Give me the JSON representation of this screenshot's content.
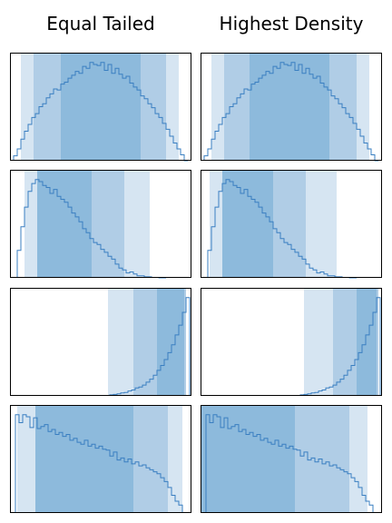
{
  "column_titles": [
    "Equal Tailed",
    "Highest Density"
  ],
  "colors": {
    "band_light": "#d6e5f2",
    "band_mid": "#b0cde6",
    "band_dark": "#8dbadc",
    "line": "#3a7fc1",
    "frame": "#000000"
  },
  "chart_data": [
    {
      "type": "histogram-step",
      "row": 0,
      "column": "Equal Tailed",
      "xlim": [
        0,
        1
      ],
      "ylim": [
        0,
        1.1
      ],
      "bands": [
        [
          0.06,
          0.93
        ],
        [
          0.13,
          0.86
        ],
        [
          0.28,
          0.72
        ]
      ],
      "x": [
        0.03,
        0.05,
        0.07,
        0.09,
        0.11,
        0.13,
        0.15,
        0.17,
        0.19,
        0.21,
        0.23,
        0.25,
        0.27,
        0.29,
        0.31,
        0.33,
        0.35,
        0.37,
        0.39,
        0.41,
        0.43,
        0.45,
        0.47,
        0.49,
        0.51,
        0.53,
        0.55,
        0.57,
        0.59,
        0.61,
        0.63,
        0.65,
        0.67,
        0.69,
        0.71,
        0.73,
        0.75,
        0.77,
        0.79,
        0.81,
        0.83,
        0.85,
        0.87,
        0.89,
        0.91,
        0.93,
        0.95,
        0.97
      ],
      "y": [
        0.05,
        0.12,
        0.22,
        0.3,
        0.37,
        0.44,
        0.48,
        0.55,
        0.58,
        0.64,
        0.68,
        0.73,
        0.72,
        0.78,
        0.8,
        0.84,
        0.87,
        0.91,
        0.89,
        0.96,
        0.94,
        1.0,
        0.98,
        0.97,
        1.0,
        0.92,
        0.98,
        0.89,
        0.94,
        0.88,
        0.84,
        0.86,
        0.79,
        0.75,
        0.72,
        0.66,
        0.63,
        0.58,
        0.54,
        0.48,
        0.44,
        0.38,
        0.32,
        0.25,
        0.18,
        0.12,
        0.06,
        0.0
      ]
    },
    {
      "type": "histogram-step",
      "row": 0,
      "column": "Highest Density",
      "xlim": [
        0,
        1
      ],
      "ylim": [
        0,
        1.1
      ],
      "bands": [
        [
          0.06,
          0.93
        ],
        [
          0.13,
          0.86
        ],
        [
          0.27,
          0.71
        ]
      ],
      "x": [
        0.03,
        0.05,
        0.07,
        0.09,
        0.11,
        0.13,
        0.15,
        0.17,
        0.19,
        0.21,
        0.23,
        0.25,
        0.27,
        0.29,
        0.31,
        0.33,
        0.35,
        0.37,
        0.39,
        0.41,
        0.43,
        0.45,
        0.47,
        0.49,
        0.51,
        0.53,
        0.55,
        0.57,
        0.59,
        0.61,
        0.63,
        0.65,
        0.67,
        0.69,
        0.71,
        0.73,
        0.75,
        0.77,
        0.79,
        0.81,
        0.83,
        0.85,
        0.87,
        0.89,
        0.91,
        0.93,
        0.95,
        0.97
      ],
      "y": [
        0.05,
        0.12,
        0.22,
        0.3,
        0.37,
        0.44,
        0.48,
        0.55,
        0.58,
        0.64,
        0.68,
        0.73,
        0.72,
        0.78,
        0.8,
        0.84,
        0.87,
        0.91,
        0.89,
        0.96,
        0.94,
        1.0,
        0.98,
        0.97,
        1.0,
        0.92,
        0.98,
        0.89,
        0.94,
        0.88,
        0.84,
        0.86,
        0.79,
        0.75,
        0.72,
        0.66,
        0.63,
        0.58,
        0.54,
        0.48,
        0.44,
        0.38,
        0.32,
        0.25,
        0.18,
        0.12,
        0.06,
        0.0
      ]
    },
    {
      "type": "histogram-step",
      "row": 1,
      "column": "Equal Tailed",
      "xlim": [
        0,
        1
      ],
      "ylim": [
        0,
        1.1
      ],
      "bands": [
        [
          0.08,
          0.77
        ],
        [
          0.15,
          0.63
        ],
        [
          0.15,
          0.45
        ]
      ],
      "x": [
        0.05,
        0.07,
        0.09,
        0.11,
        0.13,
        0.15,
        0.17,
        0.19,
        0.21,
        0.23,
        0.25,
        0.27,
        0.29,
        0.31,
        0.33,
        0.35,
        0.37,
        0.39,
        0.41,
        0.43,
        0.45,
        0.47,
        0.49,
        0.51,
        0.53,
        0.55,
        0.57,
        0.59,
        0.61,
        0.63,
        0.65,
        0.67,
        0.69,
        0.71,
        0.73,
        0.75,
        0.77,
        0.79,
        0.81,
        0.83,
        0.85
      ],
      "y": [
        0.28,
        0.52,
        0.72,
        0.88,
        0.96,
        1.0,
        0.98,
        0.94,
        0.92,
        0.86,
        0.9,
        0.83,
        0.8,
        0.77,
        0.72,
        0.66,
        0.62,
        0.57,
        0.5,
        0.46,
        0.4,
        0.36,
        0.34,
        0.29,
        0.26,
        0.22,
        0.19,
        0.14,
        0.1,
        0.08,
        0.05,
        0.06,
        0.04,
        0.02,
        0.02,
        0.01,
        0.01,
        0.005,
        0.005,
        0.0,
        0.0
      ]
    },
    {
      "type": "histogram-step",
      "row": 1,
      "column": "Highest Density",
      "xlim": [
        0,
        1
      ],
      "ylim": [
        0,
        1.1
      ],
      "bands": [
        [
          0.05,
          0.75
        ],
        [
          0.12,
          0.58
        ],
        [
          0.12,
          0.4
        ]
      ],
      "x": [
        0.05,
        0.07,
        0.09,
        0.11,
        0.13,
        0.15,
        0.17,
        0.19,
        0.21,
        0.23,
        0.25,
        0.27,
        0.29,
        0.31,
        0.33,
        0.35,
        0.37,
        0.39,
        0.41,
        0.43,
        0.45,
        0.47,
        0.49,
        0.51,
        0.53,
        0.55,
        0.57,
        0.59,
        0.61,
        0.63,
        0.65,
        0.67,
        0.69,
        0.71,
        0.73,
        0.75,
        0.77,
        0.79,
        0.81,
        0.83,
        0.85
      ],
      "y": [
        0.28,
        0.52,
        0.72,
        0.88,
        0.96,
        1.0,
        0.98,
        0.94,
        0.92,
        0.86,
        0.9,
        0.83,
        0.8,
        0.77,
        0.72,
        0.66,
        0.62,
        0.57,
        0.5,
        0.46,
        0.4,
        0.36,
        0.34,
        0.29,
        0.26,
        0.22,
        0.19,
        0.14,
        0.1,
        0.08,
        0.05,
        0.06,
        0.04,
        0.02,
        0.02,
        0.01,
        0.01,
        0.005,
        0.005,
        0.0,
        0.0
      ]
    },
    {
      "type": "histogram-step",
      "row": 2,
      "column": "Equal Tailed",
      "xlim": [
        0,
        1
      ],
      "ylim": [
        0,
        1.1
      ],
      "bands": [
        [
          0.54,
          0.97
        ],
        [
          0.68,
          0.97
        ],
        [
          0.81,
          0.96
        ]
      ],
      "x": [
        0.52,
        0.54,
        0.56,
        0.58,
        0.6,
        0.62,
        0.64,
        0.66,
        0.68,
        0.7,
        0.72,
        0.74,
        0.76,
        0.78,
        0.8,
        0.82,
        0.84,
        0.86,
        0.88,
        0.9,
        0.92,
        0.94,
        0.96,
        0.98
      ],
      "y": [
        0.005,
        0.005,
        0.01,
        0.015,
        0.02,
        0.03,
        0.035,
        0.05,
        0.06,
        0.08,
        0.09,
        0.11,
        0.14,
        0.17,
        0.21,
        0.26,
        0.31,
        0.37,
        0.44,
        0.52,
        0.62,
        0.72,
        0.85,
        1.0
      ]
    },
    {
      "type": "histogram-step",
      "row": 2,
      "column": "Highest Density",
      "xlim": [
        0,
        1
      ],
      "ylim": [
        0,
        1.1
      ],
      "bands": [
        [
          0.57,
          0.98
        ],
        [
          0.73,
          0.98
        ],
        [
          0.86,
          0.97
        ]
      ],
      "x": [
        0.52,
        0.54,
        0.56,
        0.58,
        0.6,
        0.62,
        0.64,
        0.66,
        0.68,
        0.7,
        0.72,
        0.74,
        0.76,
        0.78,
        0.8,
        0.82,
        0.84,
        0.86,
        0.88,
        0.9,
        0.92,
        0.94,
        0.96,
        0.98
      ],
      "y": [
        0.005,
        0.005,
        0.01,
        0.015,
        0.02,
        0.03,
        0.035,
        0.05,
        0.06,
        0.08,
        0.09,
        0.11,
        0.14,
        0.17,
        0.21,
        0.26,
        0.31,
        0.37,
        0.44,
        0.52,
        0.62,
        0.72,
        0.85,
        1.0
      ]
    },
    {
      "type": "histogram-step",
      "row": 3,
      "column": "Equal Tailed",
      "xlim": [
        0,
        1
      ],
      "ylim": [
        0,
        1.1
      ],
      "bands": [
        [
          0.04,
          0.95
        ],
        [
          0.14,
          0.87
        ],
        [
          0.14,
          0.68
        ]
      ],
      "x": [
        0.04,
        0.06,
        0.08,
        0.1,
        0.12,
        0.14,
        0.16,
        0.18,
        0.2,
        0.22,
        0.24,
        0.26,
        0.28,
        0.3,
        0.32,
        0.34,
        0.36,
        0.38,
        0.4,
        0.42,
        0.44,
        0.46,
        0.48,
        0.5,
        0.52,
        0.54,
        0.56,
        0.58,
        0.6,
        0.62,
        0.64,
        0.66,
        0.68,
        0.7,
        0.72,
        0.74,
        0.76,
        0.78,
        0.8,
        0.82,
        0.84,
        0.86,
        0.88,
        0.9,
        0.92,
        0.94
      ],
      "y": [
        1.0,
        0.92,
        1.0,
        0.98,
        0.87,
        0.97,
        0.86,
        0.88,
        0.9,
        0.83,
        0.85,
        0.8,
        0.82,
        0.78,
        0.8,
        0.74,
        0.76,
        0.72,
        0.7,
        0.74,
        0.68,
        0.7,
        0.66,
        0.68,
        0.65,
        0.64,
        0.58,
        0.62,
        0.54,
        0.56,
        0.52,
        0.55,
        0.5,
        0.52,
        0.48,
        0.49,
        0.46,
        0.44,
        0.42,
        0.4,
        0.36,
        0.32,
        0.26,
        0.18,
        0.12,
        0.08
      ]
    },
    {
      "type": "histogram-step",
      "row": 3,
      "column": "Highest Density",
      "xlim": [
        0,
        1
      ],
      "ylim": [
        0,
        1.1
      ],
      "bands": [
        [
          0.0,
          0.92
        ],
        [
          0.0,
          0.82
        ],
        [
          0.0,
          0.52
        ]
      ],
      "x": [
        0.04,
        0.06,
        0.08,
        0.1,
        0.12,
        0.14,
        0.16,
        0.18,
        0.2,
        0.22,
        0.24,
        0.26,
        0.28,
        0.3,
        0.32,
        0.34,
        0.36,
        0.38,
        0.4,
        0.42,
        0.44,
        0.46,
        0.48,
        0.5,
        0.52,
        0.54,
        0.56,
        0.58,
        0.6,
        0.62,
        0.64,
        0.66,
        0.68,
        0.7,
        0.72,
        0.74,
        0.76,
        0.78,
        0.8,
        0.82,
        0.84,
        0.86,
        0.88,
        0.9,
        0.92,
        0.94
      ],
      "y": [
        1.0,
        0.92,
        1.0,
        0.98,
        0.87,
        0.97,
        0.86,
        0.88,
        0.9,
        0.83,
        0.85,
        0.8,
        0.82,
        0.78,
        0.8,
        0.74,
        0.76,
        0.72,
        0.7,
        0.74,
        0.68,
        0.7,
        0.66,
        0.68,
        0.65,
        0.64,
        0.58,
        0.62,
        0.54,
        0.56,
        0.52,
        0.55,
        0.5,
        0.52,
        0.48,
        0.49,
        0.46,
        0.44,
        0.42,
        0.4,
        0.36,
        0.32,
        0.26,
        0.18,
        0.12,
        0.08
      ]
    }
  ]
}
